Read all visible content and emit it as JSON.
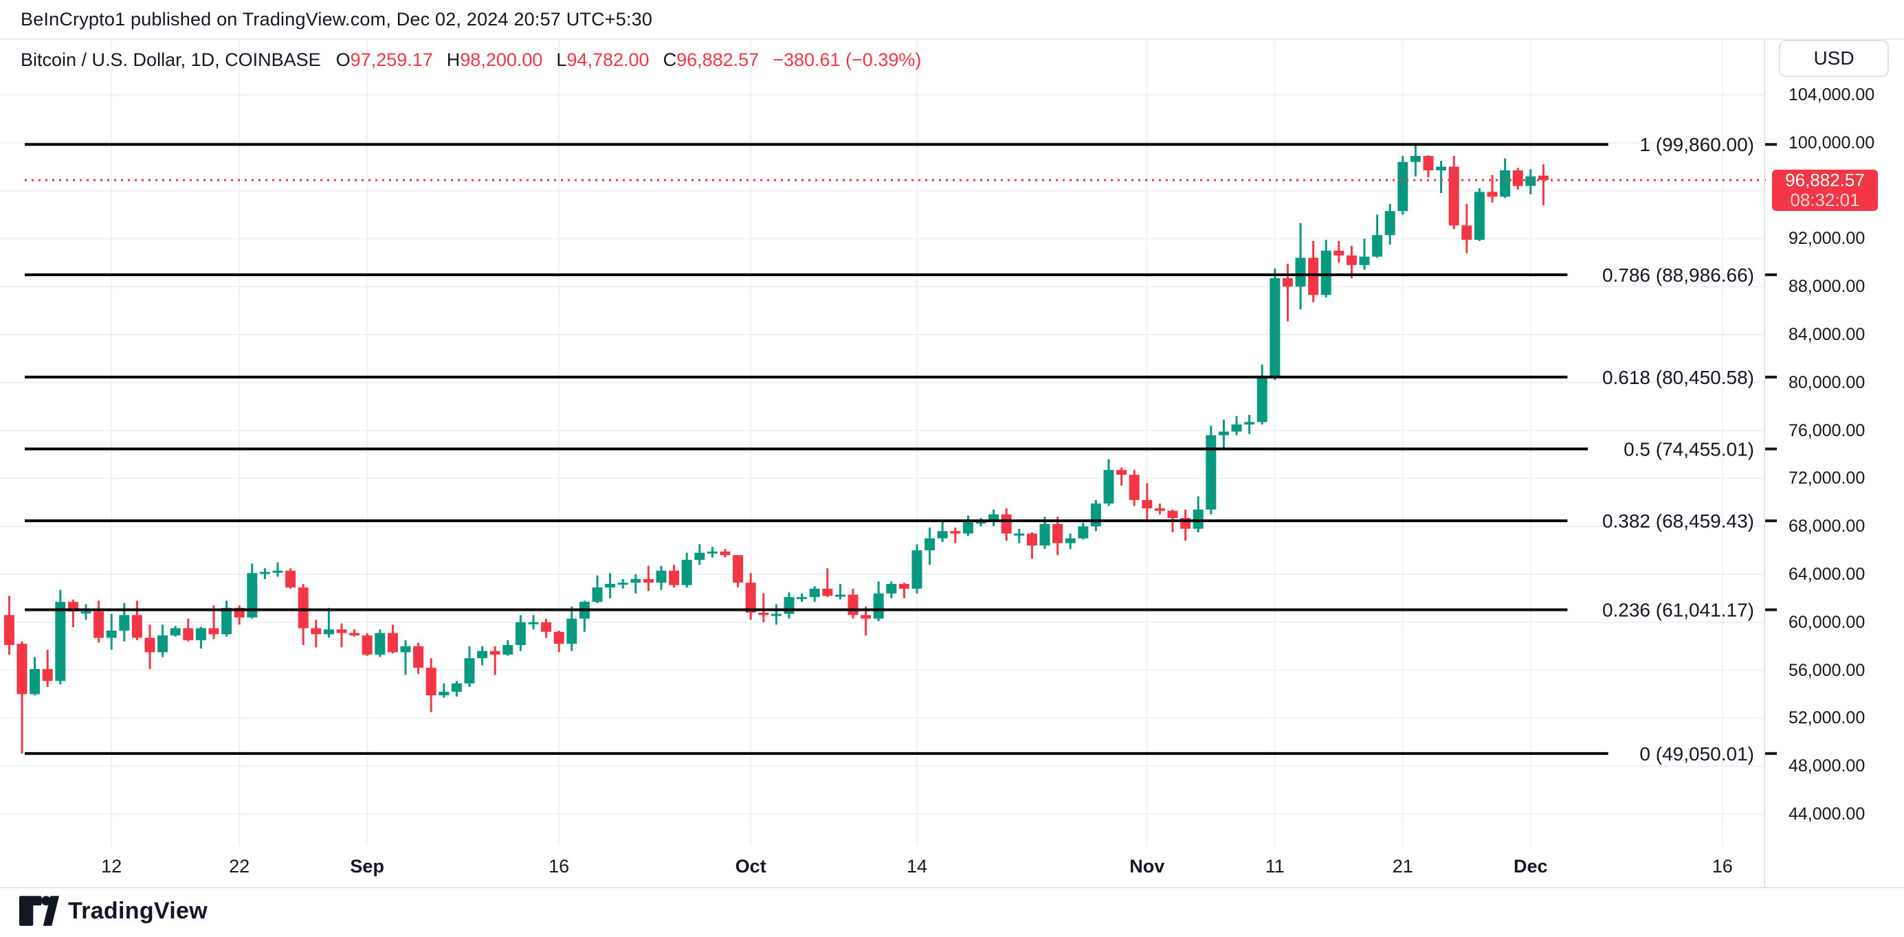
{
  "header": {
    "published_line": "BeInCrypto1 published on TradingView.com, Dec 02, 2024 20:57 UTC+5:30"
  },
  "legend": {
    "symbol": "Bitcoin / U.S. Dollar, 1D, COINBASE",
    "o_label": "O",
    "o_value": "97,259.17",
    "h_label": "H",
    "h_value": "98,200.00",
    "l_label": "L",
    "l_value": "94,782.00",
    "c_label": "C",
    "c_value": "96,882.57",
    "change": "−380.61 (−0.39%)"
  },
  "currency_button": {
    "label": "USD"
  },
  "price_badge": {
    "price": "96,882.57",
    "countdown": "08:32:01"
  },
  "footer": {
    "brand": "TradingView"
  },
  "colors": {
    "up": "#089981",
    "down": "#f23645",
    "accent_red": "#f23645",
    "text": "#131722",
    "grid": "#eef1f6",
    "border": "#e0e3eb",
    "fib_line": "#000000",
    "badge_bg": "#f23645",
    "badge_text": "#ffffff"
  },
  "chart_data": {
    "type": "candlestick",
    "title": "Bitcoin / U.S. Dollar, 1D, COINBASE",
    "interval": "1D",
    "legend_position": "top-left",
    "grid": true,
    "y_axis": {
      "min": 44000,
      "max": 104000,
      "tick_step": 4000,
      "labels": [
        "104,000.00",
        "100,000.00",
        "96,000.00",
        "92,000.00",
        "88,000.00",
        "84,000.00",
        "80,000.00",
        "76,000.00",
        "72,000.00",
        "68,000.00",
        "64,000.00",
        "60,000.00",
        "56,000.00",
        "52,000.00",
        "48,000.00",
        "44,000.00"
      ]
    },
    "x_axis": {
      "labels": [
        {
          "text": "12",
          "day": 7,
          "bold": false
        },
        {
          "text": "22",
          "day": 17,
          "bold": false
        },
        {
          "text": "Sep",
          "day": 27,
          "bold": true
        },
        {
          "text": "16",
          "day": 42,
          "bold": false
        },
        {
          "text": "Oct",
          "day": 57,
          "bold": true
        },
        {
          "text": "14",
          "day": 70,
          "bold": false
        },
        {
          "text": "Nov",
          "day": 88,
          "bold": true
        },
        {
          "text": "11",
          "day": 98,
          "bold": false
        },
        {
          "text": "21",
          "day": 108,
          "bold": false
        },
        {
          "text": "Dec",
          "day": 118,
          "bold": true
        },
        {
          "text": "16",
          "day": 133,
          "bold": false
        }
      ]
    },
    "fib_levels": [
      {
        "ratio": "1",
        "price": 99860.0,
        "label": "1 (99,860.00)"
      },
      {
        "ratio": "0.786",
        "price": 88986.66,
        "label": "0.786 (88,986.66)"
      },
      {
        "ratio": "0.618",
        "price": 80450.58,
        "label": "0.618 (80,450.58)"
      },
      {
        "ratio": "0.5",
        "price": 74455.01,
        "label": "0.5 (74,455.01)"
      },
      {
        "ratio": "0.382",
        "price": 68459.43,
        "label": "0.382 (68,459.43)"
      },
      {
        "ratio": "0.236",
        "price": 61041.17,
        "label": "0.236 (61,041.17)"
      },
      {
        "ratio": "0",
        "price": 49050.01,
        "label": "0 (49,050.01)"
      }
    ],
    "current_price": 96882.57,
    "countdown": "08:32:01",
    "ohlc": {
      "open": 97259.17,
      "high": 98200.0,
      "low": 94782.0,
      "close": 96882.57,
      "change": -380.61,
      "change_pct": -0.39
    },
    "leading_partial_candle": [
      60600,
      62200,
      57300,
      58100
    ],
    "candles": [
      [
        58200,
        58400,
        49050,
        54000
      ],
      [
        54000,
        57100,
        53900,
        56100
      ],
      [
        56100,
        57700,
        54600,
        55100
      ],
      [
        55100,
        62700,
        54800,
        61700
      ],
      [
        61700,
        61900,
        59600,
        60900
      ],
      [
        60900,
        61500,
        60200,
        60900
      ],
      [
        60900,
        61800,
        58300,
        58700
      ],
      [
        58700,
        60700,
        57700,
        59300
      ],
      [
        59300,
        61600,
        58400,
        60600
      ],
      [
        60600,
        61800,
        58500,
        58700
      ],
      [
        58700,
        59800,
        56100,
        57500
      ],
      [
        57500,
        59800,
        57100,
        58900
      ],
      [
        58900,
        59700,
        58800,
        59500
      ],
      [
        59500,
        60300,
        58400,
        58500
      ],
      [
        58500,
        59600,
        57800,
        59500
      ],
      [
        59500,
        61400,
        58600,
        59000
      ],
      [
        59000,
        61800,
        58800,
        61200
      ],
      [
        61200,
        61400,
        59800,
        60400
      ],
      [
        60400,
        64900,
        60300,
        64100
      ],
      [
        64100,
        64500,
        63600,
        64200
      ],
      [
        64200,
        65000,
        63800,
        64300
      ],
      [
        64300,
        64500,
        62800,
        62900
      ],
      [
        62900,
        63200,
        58100,
        59500
      ],
      [
        59500,
        60200,
        57900,
        59000
      ],
      [
        59000,
        61200,
        58700,
        59400
      ],
      [
        59400,
        59900,
        57900,
        59100
      ],
      [
        59100,
        59400,
        58800,
        58900
      ],
      [
        58900,
        59100,
        57200,
        57300
      ],
      [
        57300,
        59400,
        57100,
        59100
      ],
      [
        59100,
        59800,
        57400,
        57500
      ],
      [
        57500,
        58500,
        55600,
        58000
      ],
      [
        58000,
        58300,
        55700,
        56200
      ],
      [
        56200,
        57000,
        52500,
        53900
      ],
      [
        53900,
        54900,
        53700,
        54200
      ],
      [
        54200,
        55100,
        53800,
        54900
      ],
      [
        54900,
        58000,
        54600,
        57000
      ],
      [
        57000,
        58000,
        56400,
        57600
      ],
      [
        57600,
        58000,
        55600,
        57300
      ],
      [
        57300,
        58500,
        57200,
        58100
      ],
      [
        58100,
        60600,
        57600,
        60000
      ],
      [
        60000,
        60600,
        59400,
        60000
      ],
      [
        60000,
        60300,
        58700,
        59200
      ],
      [
        59200,
        59300,
        57500,
        58200
      ],
      [
        58200,
        61300,
        57600,
        60300
      ],
      [
        60300,
        61800,
        59200,
        61700
      ],
      [
        61700,
        63900,
        61600,
        62900
      ],
      [
        62900,
        64100,
        62000,
        63200
      ],
      [
        63200,
        63600,
        62800,
        63300
      ],
      [
        63300,
        64000,
        62400,
        63600
      ],
      [
        63600,
        64700,
        62600,
        63300
      ],
      [
        63300,
        64700,
        62700,
        64300
      ],
      [
        64300,
        64800,
        62900,
        63100
      ],
      [
        63100,
        65800,
        62900,
        65200
      ],
      [
        65200,
        66500,
        64800,
        65800
      ],
      [
        65800,
        66300,
        65400,
        65900
      ],
      [
        65900,
        66100,
        65400,
        65600
      ],
      [
        65600,
        65600,
        62900,
        63300
      ],
      [
        63300,
        64100,
        60200,
        60800
      ],
      [
        60800,
        62400,
        60000,
        60600
      ],
      [
        60600,
        61500,
        59800,
        60700
      ],
      [
        60700,
        62500,
        60300,
        62100
      ],
      [
        62100,
        62400,
        61700,
        62100
      ],
      [
        62100,
        63000,
        61700,
        62800
      ],
      [
        62800,
        64500,
        62100,
        62200
      ],
      [
        62200,
        63200,
        61900,
        62300
      ],
      [
        62300,
        62800,
        60300,
        60600
      ],
      [
        60600,
        61300,
        58900,
        60300
      ],
      [
        60300,
        63400,
        60100,
        62400
      ],
      [
        62400,
        63400,
        62000,
        63200
      ],
      [
        63200,
        63300,
        62000,
        62800
      ],
      [
        62800,
        66500,
        62400,
        66000
      ],
      [
        66000,
        67900,
        64800,
        67000
      ],
      [
        67000,
        68400,
        66700,
        67600
      ],
      [
        67600,
        67900,
        66600,
        67400
      ],
      [
        67400,
        68900,
        67200,
        68400
      ],
      [
        68400,
        68700,
        68000,
        68400
      ],
      [
        68400,
        69400,
        68000,
        69000
      ],
      [
        69000,
        69500,
        66800,
        67400
      ],
      [
        67400,
        67800,
        66600,
        67400
      ],
      [
        67400,
        67500,
        65300,
        66400
      ],
      [
        66400,
        68800,
        66100,
        68200
      ],
      [
        68200,
        68800,
        65600,
        66600
      ],
      [
        66600,
        67400,
        66100,
        67000
      ],
      [
        67000,
        68300,
        66900,
        68000
      ],
      [
        68000,
        70200,
        67600,
        69900
      ],
      [
        69900,
        73600,
        69700,
        72700
      ],
      [
        72700,
        72900,
        71400,
        72300
      ],
      [
        72300,
        72700,
        69700,
        70200
      ],
      [
        70200,
        71600,
        68400,
        69500
      ],
      [
        69500,
        69900,
        69000,
        69300
      ],
      [
        69300,
        69400,
        67500,
        68700
      ],
      [
        68700,
        69400,
        66800,
        67800
      ],
      [
        67800,
        70500,
        67500,
        69400
      ],
      [
        69400,
        76400,
        69000,
        75600
      ],
      [
        75600,
        76900,
        74400,
        75900
      ],
      [
        75900,
        77200,
        75600,
        76500
      ],
      [
        76500,
        77300,
        75700,
        76700
      ],
      [
        76700,
        81500,
        76500,
        80400
      ],
      [
        80400,
        89500,
        80200,
        88700
      ],
      [
        88700,
        89900,
        85100,
        88000
      ],
      [
        88000,
        93300,
        86100,
        90400
      ],
      [
        90400,
        91800,
        86700,
        87300
      ],
      [
        87300,
        91900,
        87100,
        91000
      ],
      [
        91000,
        91800,
        90000,
        90600
      ],
      [
        90600,
        91400,
        88700,
        89800
      ],
      [
        89800,
        92000,
        89400,
        90500
      ],
      [
        90500,
        94000,
        90400,
        92300
      ],
      [
        92300,
        94900,
        91500,
        94300
      ],
      [
        94300,
        98900,
        94000,
        98400
      ],
      [
        98400,
        99860,
        97200,
        98900
      ],
      [
        98900,
        98950,
        97100,
        97700
      ],
      [
        97700,
        98500,
        95800,
        98000
      ],
      [
        98000,
        98900,
        92800,
        93100
      ],
      [
        93100,
        94900,
        90800,
        91900
      ],
      [
        91900,
        96200,
        91800,
        95900
      ],
      [
        95900,
        97300,
        95000,
        95500
      ],
      [
        95500,
        98700,
        95400,
        97700
      ],
      [
        97700,
        97900,
        96100,
        96400
      ],
      [
        96400,
        97800,
        95700,
        97200
      ],
      [
        97259.17,
        98200,
        94782,
        96882.57
      ]
    ]
  }
}
